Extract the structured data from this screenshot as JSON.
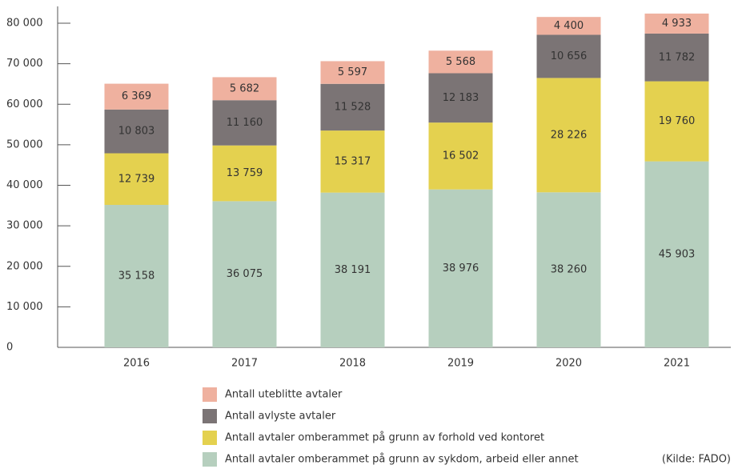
{
  "chart_data": {
    "type": "stacked_bar",
    "categories": [
      "2016",
      "2017",
      "2018",
      "2019",
      "2020",
      "2021"
    ],
    "series": [
      {
        "name": "Antall avtaler omberammet på grunn av sykdom, arbeid eller annet",
        "color": "#b6cfbe",
        "values": [
          35158,
          36075,
          38191,
          38976,
          38260,
          45903
        ],
        "value_labels": [
          "35 158",
          "36 075",
          "38 191",
          "38 976",
          "38 260",
          "45 903"
        ]
      },
      {
        "name": "Antall avtaler omberammet på grunn av forhold ved kontoret",
        "color": "#e4d14f",
        "values": [
          12739,
          13759,
          15317,
          16502,
          28226,
          19760
        ],
        "value_labels": [
          "12 739",
          "13 759",
          "15 317",
          "16 502",
          "28 226",
          "19 760"
        ]
      },
      {
        "name": "Antall avlyste avtaler",
        "color": "#7b7475",
        "values": [
          10803,
          11160,
          11528,
          12183,
          10656,
          11782
        ],
        "value_labels": [
          "10 803",
          "11 160",
          "11 528",
          "12 183",
          "10 656",
          "11 782"
        ]
      },
      {
        "name": "Antall uteblitte avtaler",
        "color": "#efb19f",
        "values": [
          6369,
          5682,
          5597,
          5568,
          4400,
          4933
        ],
        "value_labels": [
          "6 369",
          "5 682",
          "5 597",
          "5 568",
          "4 400",
          "4 933"
        ]
      }
    ],
    "ylim": [
      0,
      80000
    ],
    "yticks": [
      0,
      {
        "value": 10000,
        "label": "10 000"
      },
      {
        "value": 20000,
        "label": "20 000"
      },
      {
        "value": 30000,
        "label": "30 000"
      },
      {
        "value": 40000,
        "label": "40 000"
      },
      {
        "value": 50000,
        "label": "50 000"
      },
      {
        "value": 60000,
        "label": "60 000"
      },
      {
        "value": 70000,
        "label": "70 000"
      },
      {
        "value": 80000,
        "label": "80 000"
      }
    ],
    "source": "(Kilde: FADO)"
  }
}
